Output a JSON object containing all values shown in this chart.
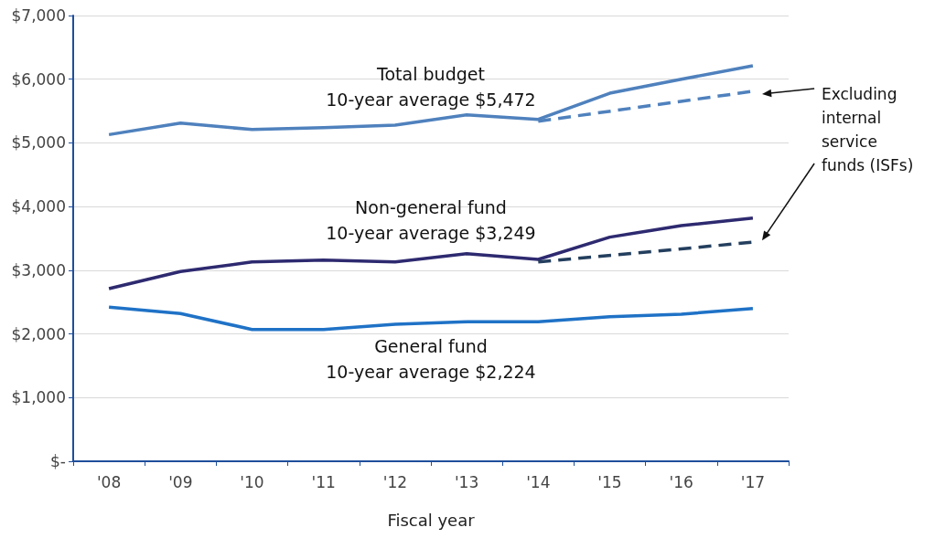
{
  "chart_data": {
    "type": "line",
    "xlabel": "Fiscal year",
    "categories": [
      "'08",
      "'09",
      "'10",
      "'11",
      "'12",
      "'13",
      "'14",
      "'15",
      "'16",
      "'17"
    ],
    "series": [
      {
        "color": "#4f81bd",
        "line_style": "solid",
        "values": [
          5130,
          5310,
          5210,
          5240,
          5280,
          5440,
          5370,
          5780,
          6000,
          6210
        ]
      },
      {
        "color": "#4f81bd",
        "line_style": "dashed",
        "values": [
          null,
          null,
          null,
          null,
          null,
          null,
          5340,
          null,
          null,
          5810
        ]
      },
      {
        "color": "#2e2a70",
        "line_style": "solid",
        "values": [
          2710,
          2980,
          3130,
          3160,
          3130,
          3260,
          3170,
          3520,
          3700,
          3820
        ]
      },
      {
        "color": "#243f5e",
        "line_style": "dashed",
        "values": [
          null,
          null,
          null,
          null,
          null,
          null,
          3130,
          null,
          null,
          3440
        ]
      },
      {
        "color": "#1f72c6",
        "line_style": "solid",
        "values": [
          2420,
          2320,
          2070,
          2070,
          2150,
          2190,
          2190,
          2270,
          2310,
          2400
        ]
      }
    ],
    "ylim": [
      0,
      7000
    ],
    "yticks": [
      {
        "value": 0,
        "label": "$-"
      },
      {
        "value": 1000,
        "label": "$1,000"
      },
      {
        "value": 2000,
        "label": "$2,000"
      },
      {
        "value": 3000,
        "label": "$3,000"
      },
      {
        "value": 4000,
        "label": "$4,000"
      },
      {
        "value": 5000,
        "label": "$5,000"
      },
      {
        "value": 6000,
        "label": "$6,000"
      },
      {
        "value": 7000,
        "label": "$7,000"
      }
    ],
    "grid": "y",
    "marker": "none",
    "annotations": [
      "Total budget\n10-year average $5,472",
      "Non-general fund\n10-year average $3,249",
      "General fund\n10-year average $2,224",
      "Excluding\ninternal\nservice\nfunds (ISFs)"
    ]
  }
}
